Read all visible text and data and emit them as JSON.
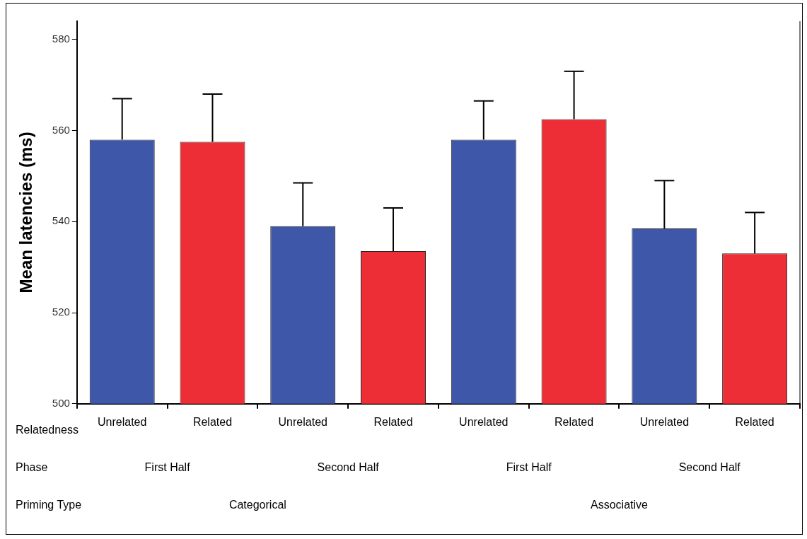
{
  "chart_data": {
    "type": "bar",
    "ylabel": "Mean latencies (ms)",
    "categories": [
      "Unrelated",
      "Related",
      "Unrelated",
      "Related",
      "Unrelated",
      "Related",
      "Unrelated",
      "Related"
    ],
    "values": [
      558,
      557.5,
      539,
      533.5,
      558,
      562.5,
      538.5,
      533
    ],
    "colors": [
      "#3f57a8",
      "#ee2e36",
      "#3f57a8",
      "#ee2e36",
      "#3f57a8",
      "#ee2e36",
      "#3f57a8",
      "#ee2e36"
    ],
    "errors": [
      [
        558,
        567
      ],
      [
        557.5,
        568
      ],
      [
        539,
        548.5
      ],
      [
        533.5,
        543
      ],
      [
        558,
        566.5
      ],
      [
        562.5,
        573
      ],
      [
        538.5,
        549
      ],
      [
        533,
        542
      ]
    ],
    "ylim": [
      500,
      584
    ],
    "yticks": [
      500,
      520,
      540,
      560,
      580
    ],
    "grid": false,
    "legend": false,
    "annotations": [
      "Relatedness",
      "Phase",
      "First Half",
      "Second Half",
      "First Half",
      "Second Half",
      "Priming Type",
      "Categorical",
      "Associative"
    ]
  }
}
